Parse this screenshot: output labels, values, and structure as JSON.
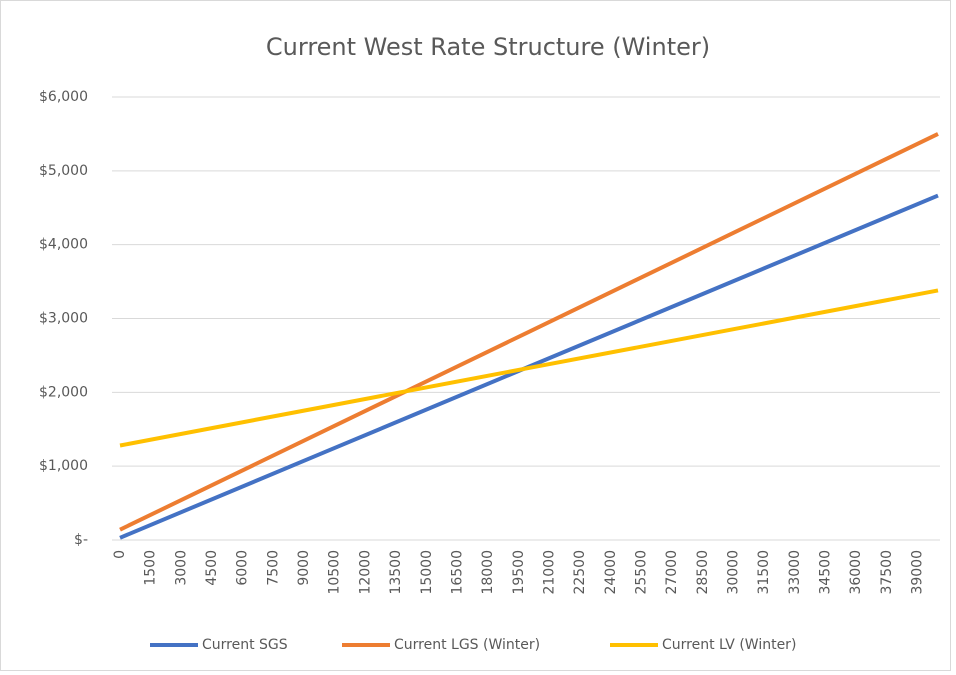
{
  "chart_data": {
    "type": "line",
    "title": "Current West Rate Structure (Winter)",
    "x": [
      0,
      10000,
      20000,
      30000,
      40000
    ],
    "xlim": [
      0,
      40000
    ],
    "xticks": [
      0,
      1500,
      3000,
      4500,
      6000,
      7500,
      9000,
      10500,
      12000,
      13500,
      15000,
      16500,
      18000,
      19500,
      21000,
      22500,
      24000,
      25500,
      27000,
      28500,
      30000,
      31500,
      33000,
      34500,
      36000,
      37500,
      39000
    ],
    "ylim": [
      0,
      6000
    ],
    "yticks": [
      {
        "value": 0,
        "label": "$-"
      },
      {
        "value": 1000,
        "label": "$1,000"
      },
      {
        "value": 2000,
        "label": "$2,000"
      },
      {
        "value": 3000,
        "label": "$3,000"
      },
      {
        "value": 4000,
        "label": "$4,000"
      },
      {
        "value": 5000,
        "label": "$5,000"
      },
      {
        "value": 6000,
        "label": "$6,000"
      }
    ],
    "grid": true,
    "legend": "bottom",
    "series": [
      {
        "name": "Current SGS",
        "color": "#4472c4",
        "values": [
          30,
          1189,
          2348,
          3506,
          4665
        ]
      },
      {
        "name": "Current LGS (Winter)",
        "color": "#ed7d31",
        "values": [
          140,
          1480,
          2820,
          4160,
          5500
        ]
      },
      {
        "name": "Current LV (Winter)",
        "color": "#ffc000",
        "values": [
          1280,
          1805,
          2330,
          2855,
          3380
        ]
      }
    ]
  }
}
